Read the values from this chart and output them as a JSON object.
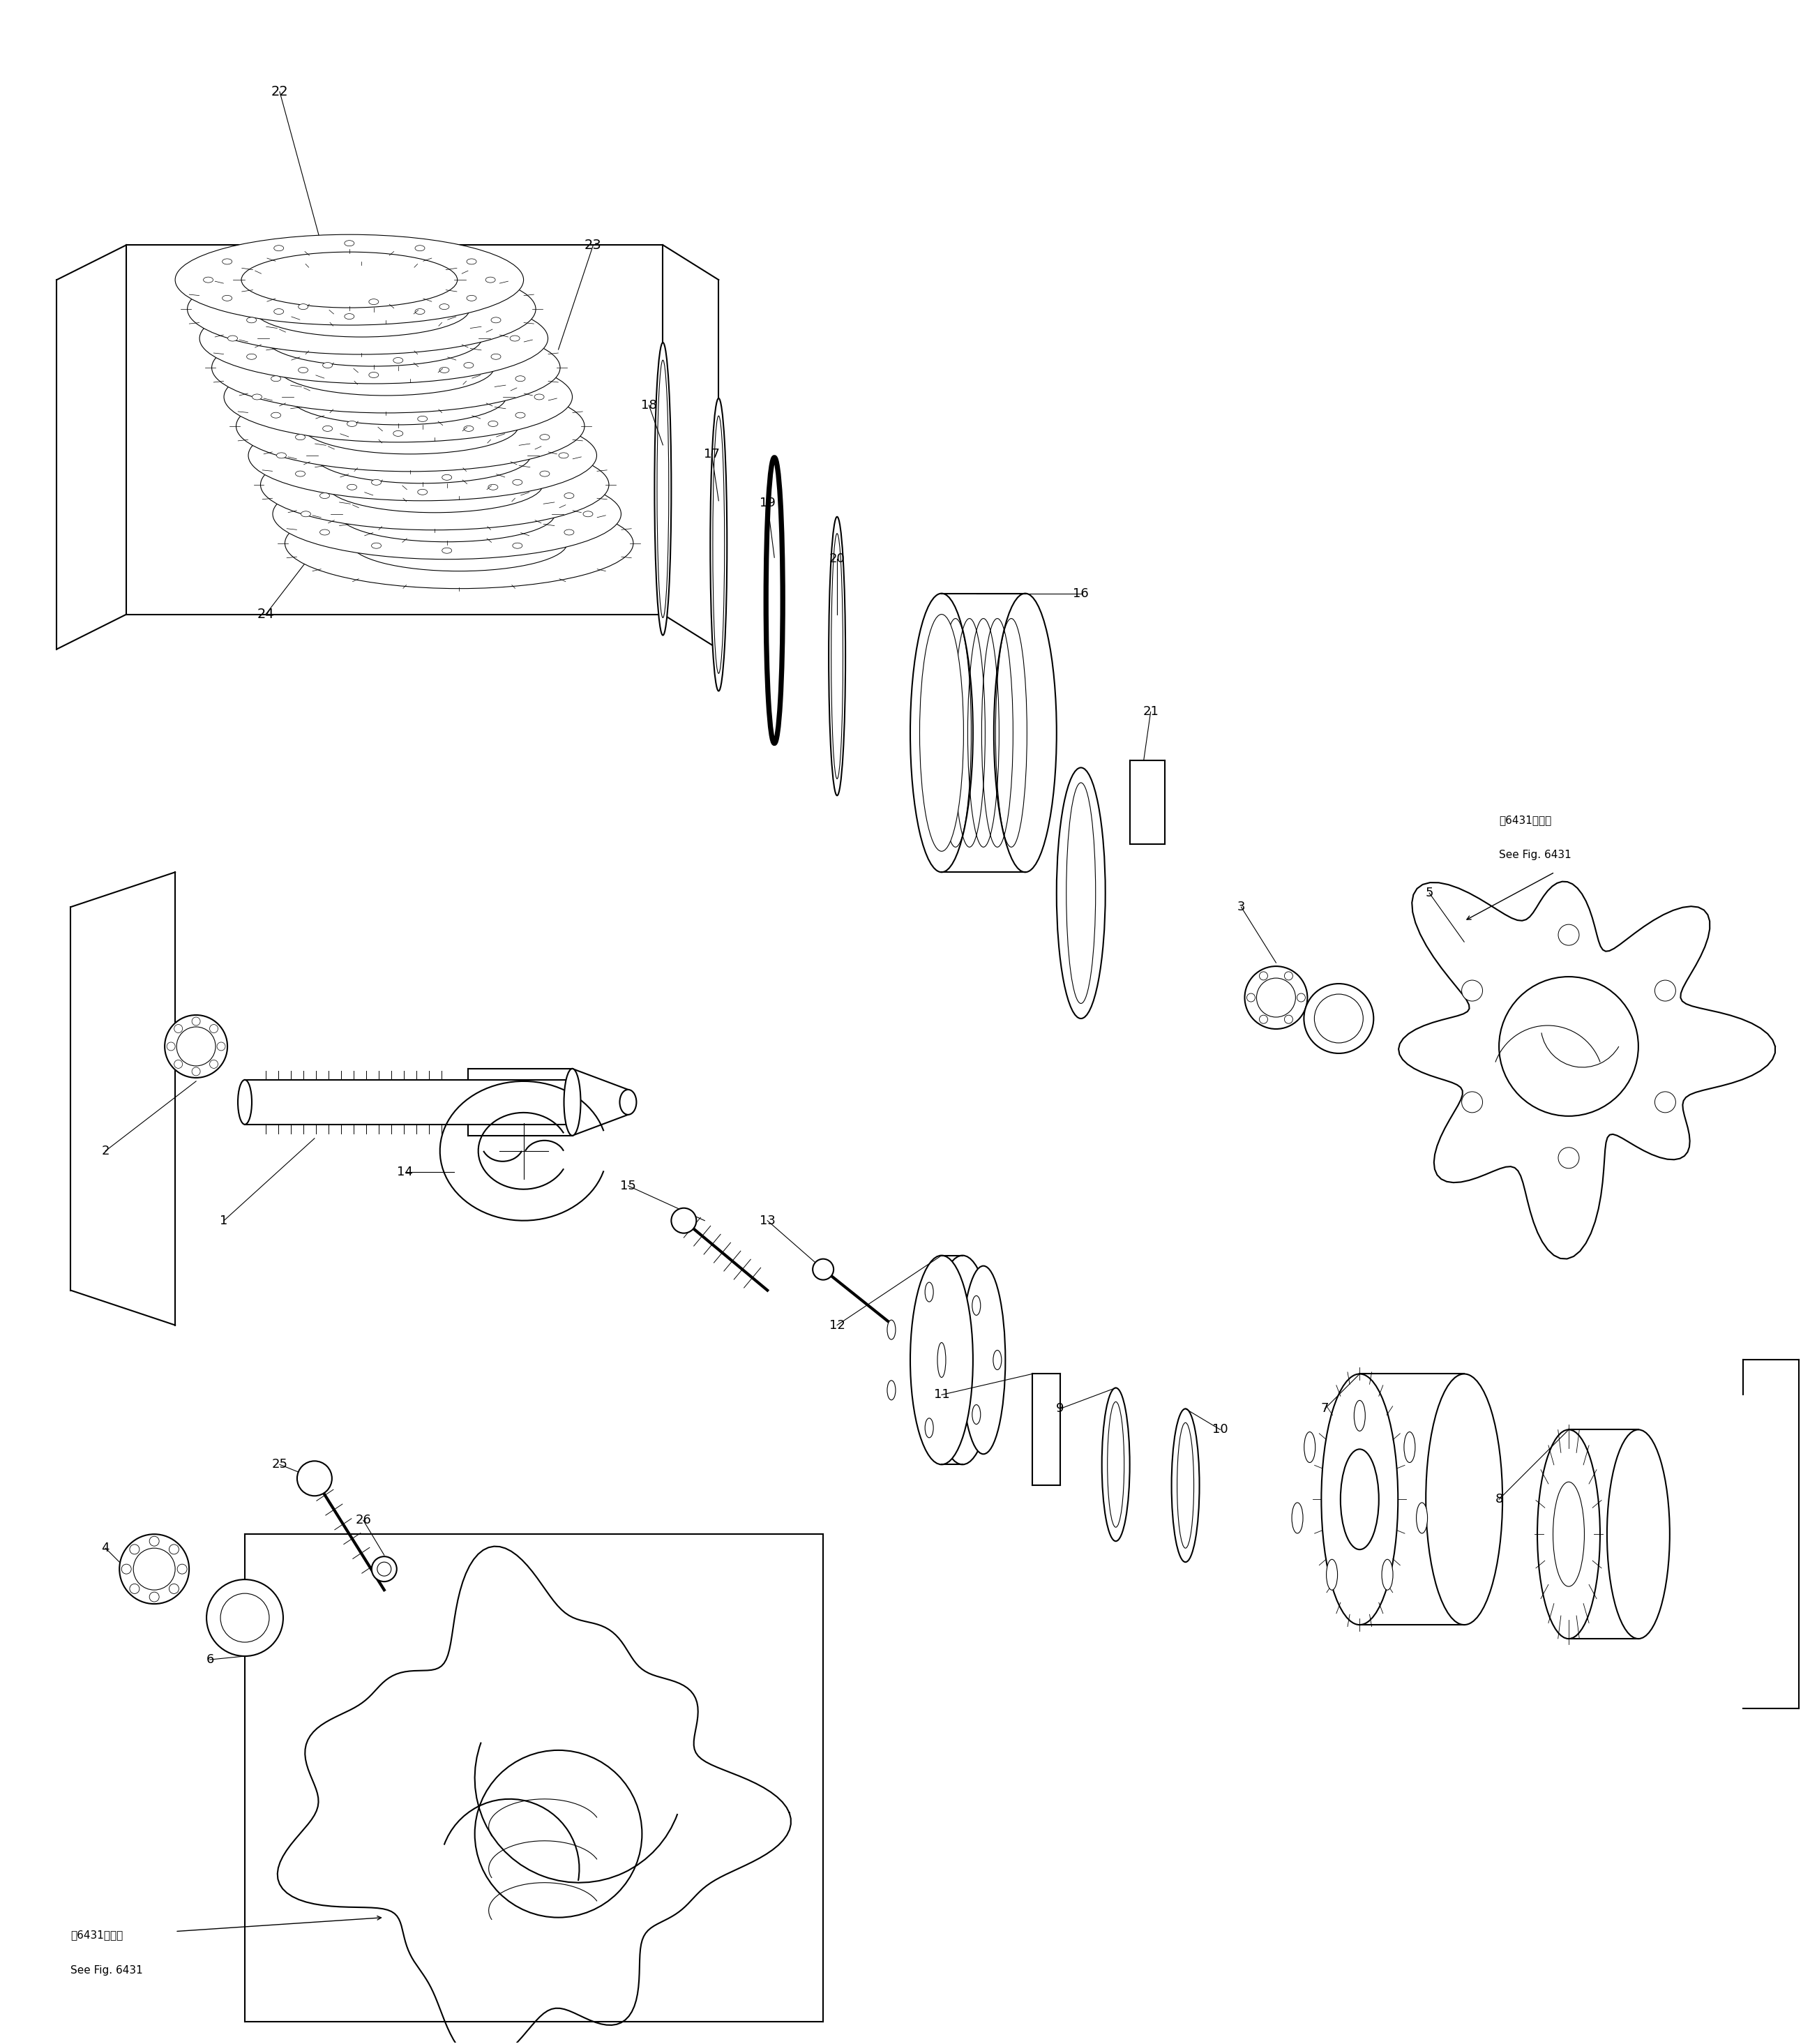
{
  "background_color": "#ffffff",
  "line_color": "#000000",
  "fig_width": 26.05,
  "fig_height": 29.3,
  "note_top_right_japanese": "第6431図参照",
  "note_top_right_english": "See Fig. 6431",
  "note_bottom_left_japanese": "第6431図参照",
  "note_bottom_left_english": "See Fig. 6431"
}
